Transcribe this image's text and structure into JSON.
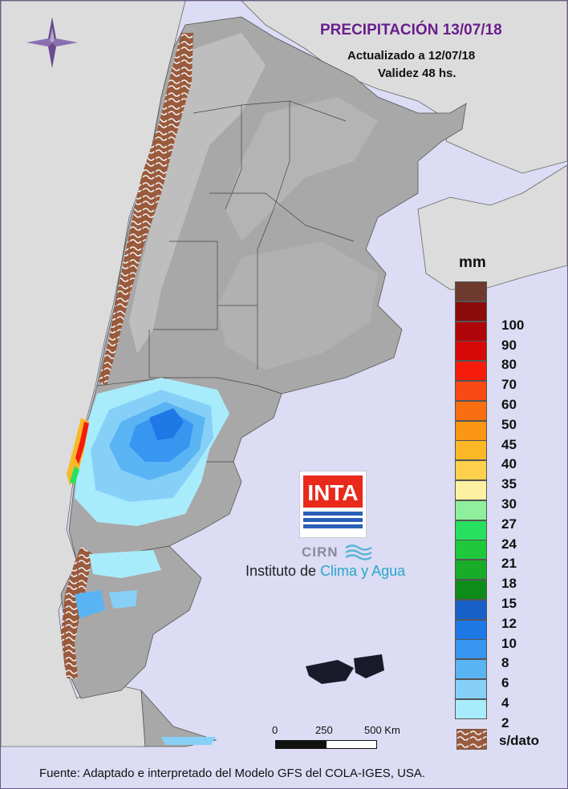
{
  "header": {
    "title": "PRECIPITACIÓN 13/07/18",
    "updated": "Actualizado a 12/07/18",
    "validity": "Validez 48 hs."
  },
  "legend": {
    "unit": "mm",
    "items": [
      {
        "label": "",
        "color": "#6e3a2e"
      },
      {
        "label": "100",
        "color": "#8b0a0a"
      },
      {
        "label": "90",
        "color": "#b0060a"
      },
      {
        "label": "80",
        "color": "#d60808"
      },
      {
        "label": "70",
        "color": "#f51c0c"
      },
      {
        "label": "60",
        "color": "#fa4a14"
      },
      {
        "label": "50",
        "color": "#fa6e12"
      },
      {
        "label": "45",
        "color": "#fb9612"
      },
      {
        "label": "40",
        "color": "#fbb826"
      },
      {
        "label": "35",
        "color": "#fdd04c"
      },
      {
        "label": "30",
        "color": "#fdf0a0"
      },
      {
        "label": "27",
        "color": "#8ef09c"
      },
      {
        "label": "24",
        "color": "#28e060"
      },
      {
        "label": "21",
        "color": "#20c83c"
      },
      {
        "label": "18",
        "color": "#18ac28"
      },
      {
        "label": "15",
        "color": "#0e8c1a"
      },
      {
        "label": "12",
        "color": "#1660c8"
      },
      {
        "label": "10",
        "color": "#1e78e6"
      },
      {
        "label": "8",
        "color": "#3696f0"
      },
      {
        "label": "6",
        "color": "#5ab4f4"
      },
      {
        "label": "4",
        "color": "#86d0f8"
      },
      {
        "label": "2",
        "color": "#a8ecfc"
      }
    ],
    "no_data_label": "s/dato",
    "no_data_color": "#9a5a3c"
  },
  "scale_bar": {
    "labels": [
      "0",
      "250",
      "500 Km"
    ]
  },
  "logo": {
    "brand": "INTA",
    "unit": "CIRN",
    "institute_prefix": "Instituto de ",
    "institute_highlight": "Clima y Agua"
  },
  "footer": "Fuente: Adaptado e interpretado del Modelo GFS del COLA-IGES, USA.",
  "colors": {
    "ocean": "#dcdcf4",
    "land_outside": "#dcdcdc",
    "relief": "#a8a8a8",
    "title": "#6a1e8c"
  }
}
